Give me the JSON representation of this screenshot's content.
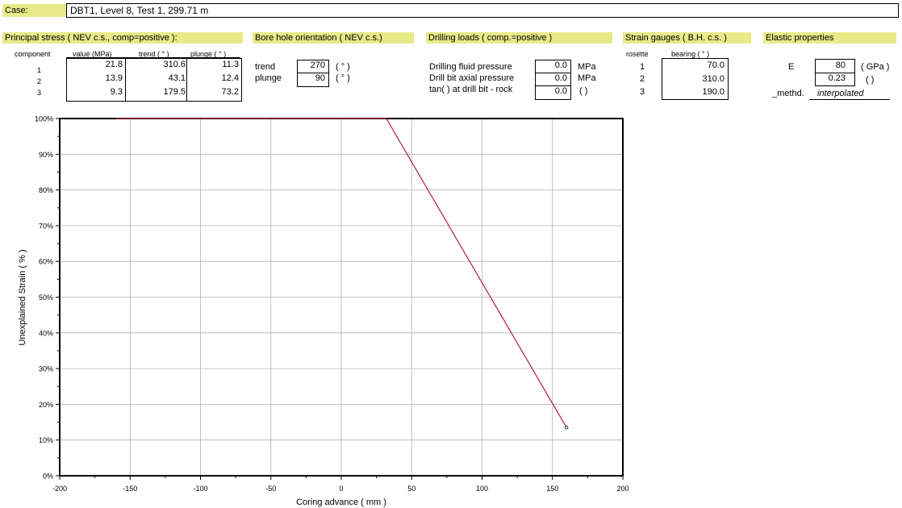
{
  "case": {
    "label": "Case:",
    "value": "DBT1, Level 8, Test 1, 299.71 m"
  },
  "principal": {
    "title": "Principal stress ( NEV c.s., comp=positive ):",
    "headers": [
      "component",
      "value (MPa)",
      "trend ( ° )",
      "plunge ( ° )"
    ],
    "rows": [
      {
        "component": "1",
        "value": "21.8",
        "trend": "310.6",
        "plunge": "11.3"
      },
      {
        "component": "2",
        "value": "13.9",
        "trend": "43.1",
        "plunge": "12.4"
      },
      {
        "component": "3",
        "value": "9.3",
        "trend": "179.5",
        "plunge": "73.2"
      }
    ]
  },
  "borehole": {
    "title": "Bore hole orientation ( NEV c.s.)",
    "trend_label": "trend",
    "trend_value": "270",
    "trend_unit": "( ° )",
    "plunge_label": "plunge",
    "plunge_value": "90",
    "plunge_unit": "( ° )"
  },
  "drilling": {
    "title": "Drilling loads ( comp.=positive )",
    "rows": [
      {
        "label": "Drilling fluid pressure",
        "value": "0.0",
        "unit": "MPa"
      },
      {
        "label": "Drill bit axial pressure",
        "value": "0.0",
        "unit": "MPa"
      },
      {
        "label": "tan(  ) at drill bit - rock",
        "value": "0.0",
        "unit": "(  )"
      }
    ]
  },
  "gauges": {
    "title": "Strain gauges ( B.H. c.s. )",
    "headers": [
      "rosette",
      "bearing ( ° )"
    ],
    "rows": [
      {
        "rosette": "1",
        "bearing": "70.0"
      },
      {
        "rosette": "2",
        "bearing": "310.0"
      },
      {
        "rosette": "3",
        "bearing": "190.0"
      }
    ]
  },
  "elastic": {
    "title": "Elastic properties",
    "e_label": "E",
    "e_value": "80",
    "e_unit": "( GPa )",
    "nu_value": "0.23",
    "nu_unit": "(  )",
    "method_label": "_methd.",
    "method_value": "interpolated"
  },
  "chart_data": {
    "type": "line",
    "xlabel": "Coring advance ( mm )",
    "ylabel": "Unexplained Strain ( % )",
    "xlim": [
      -200,
      200
    ],
    "ylim": [
      0,
      100
    ],
    "xticks": [
      "-200",
      "-150",
      "-100",
      "-50",
      "0",
      "50",
      "100",
      "150",
      "200"
    ],
    "yticks": [
      "0%",
      "10%",
      "20%",
      "30%",
      "40%",
      "50%",
      "60%",
      "70%",
      "80%",
      "90%",
      "100%"
    ],
    "grid": true,
    "line_color": "#b0203a",
    "series": [
      {
        "x": [
          -160,
          32,
          160
        ],
        "y": [
          100,
          100,
          13.5
        ]
      }
    ]
  }
}
